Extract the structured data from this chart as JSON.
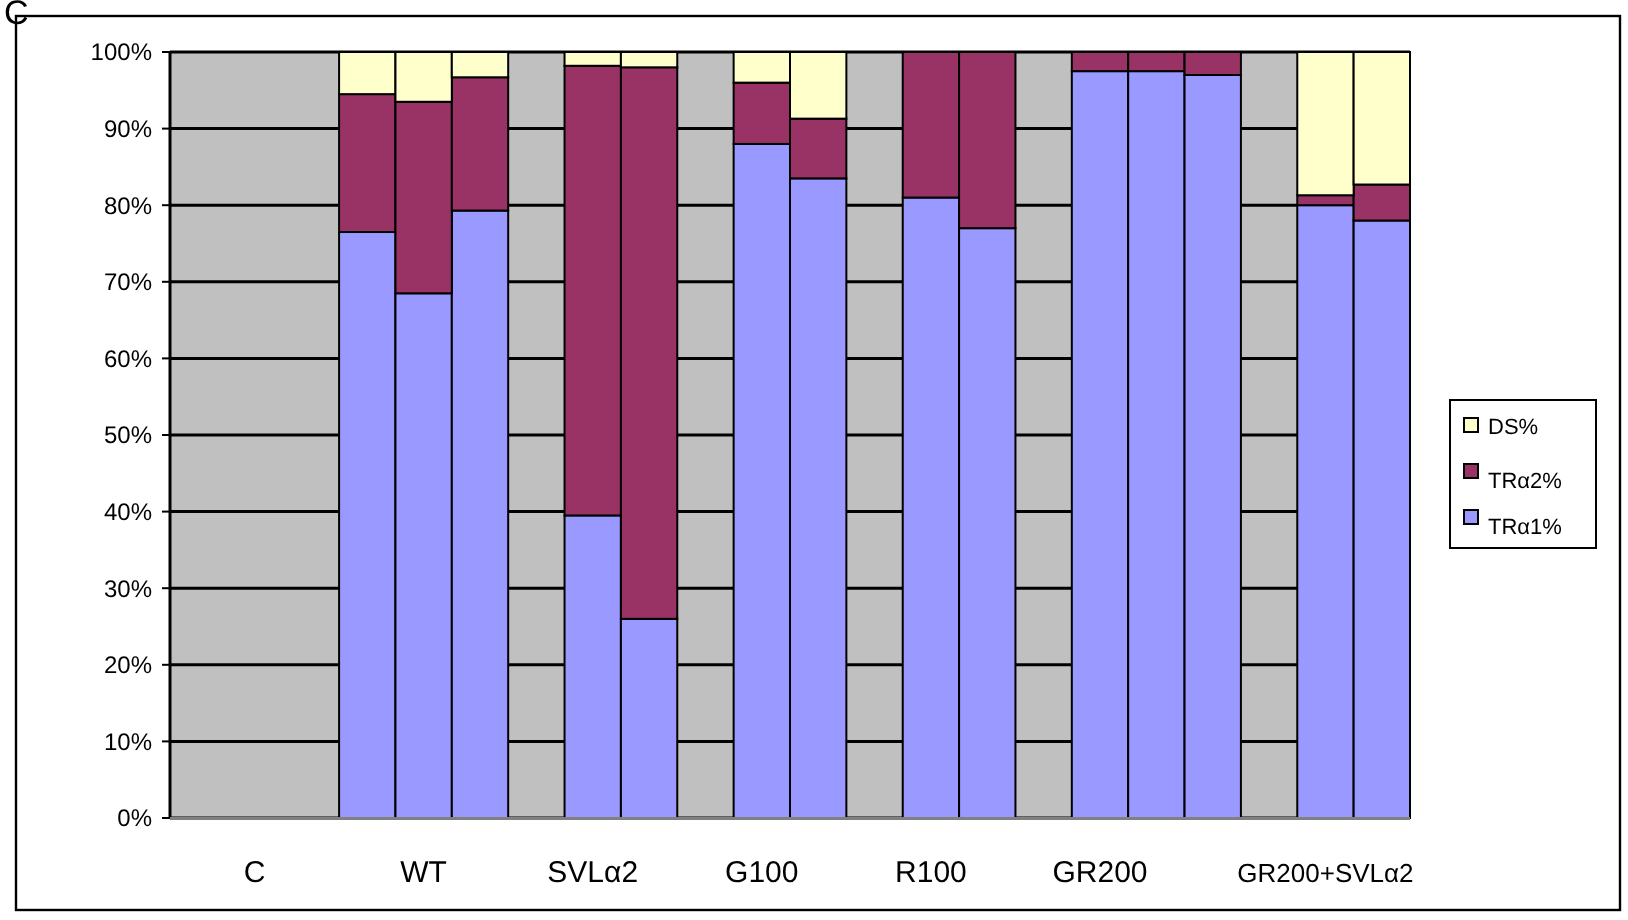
{
  "chart_data": {
    "type": "bar",
    "stacked": true,
    "categories": [
      null,
      "C",
      null,
      null,
      "WT",
      null,
      null,
      "SVLα2",
      null,
      null,
      "G100",
      null,
      null,
      "R100",
      null,
      null,
      "GR200",
      null,
      null,
      null,
      "GR200+SVLα2",
      null
    ],
    "series": [
      {
        "name": "TRα1%",
        "color": "#9999ff",
        "values": [
          null,
          null,
          null,
          76.5,
          68.5,
          79.3,
          null,
          39.5,
          26,
          null,
          88,
          83.5,
          null,
          81,
          77,
          null,
          97.5,
          97.5,
          97,
          null,
          80,
          78
        ]
      },
      {
        "name": "TRα2%",
        "color": "#993366",
        "values": [
          null,
          null,
          null,
          18,
          25,
          17.4,
          null,
          58.7,
          72,
          null,
          8,
          7.8,
          null,
          19,
          23,
          null,
          2.5,
          2.5,
          3,
          null,
          1.3,
          4.7
        ]
      },
      {
        "name": "DS%",
        "color": "#ffffcc",
        "values": [
          null,
          null,
          null,
          5.5,
          6.5,
          3.3,
          null,
          1.8,
          2,
          null,
          4,
          8.7,
          null,
          0,
          0,
          null,
          0,
          0,
          0,
          null,
          18.7,
          17.3
        ]
      }
    ],
    "ylim": [
      0,
      100
    ],
    "yticks": [
      {
        "value": 0,
        "label": "0%"
      },
      {
        "value": 10,
        "label": "10%"
      },
      {
        "value": 20,
        "label": "20%"
      },
      {
        "value": 30,
        "label": "30%"
      },
      {
        "value": 40,
        "label": "40%"
      },
      {
        "value": 50,
        "label": "50%"
      },
      {
        "value": 60,
        "label": "60%"
      },
      {
        "value": 70,
        "label": "70%"
      },
      {
        "value": 80,
        "label": "80%"
      },
      {
        "value": 90,
        "label": "90%"
      },
      {
        "value": 100,
        "label": "100%"
      }
    ],
    "grid": "y",
    "legend": "right",
    "annotations": [
      "C"
    ]
  }
}
